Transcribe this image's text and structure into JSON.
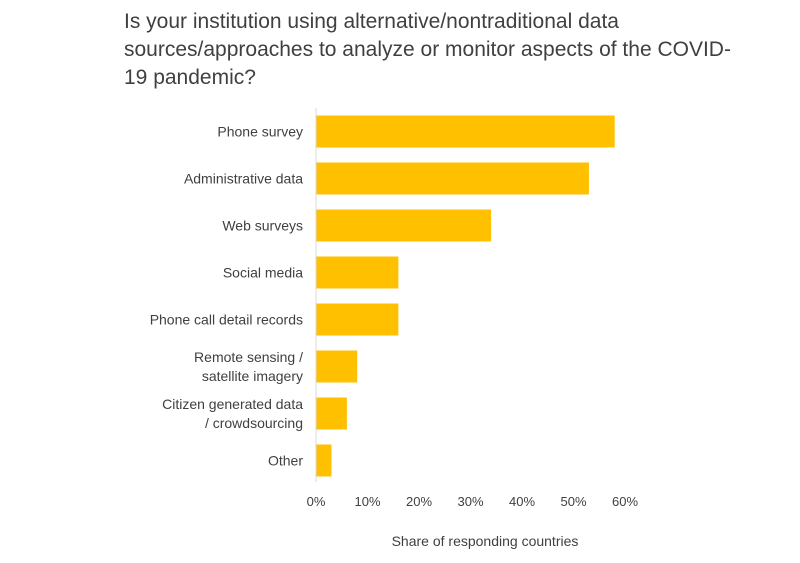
{
  "chart_data": {
    "type": "bar",
    "orientation": "horizontal",
    "title": "Is your institution using alternative/nontraditional data sources/approaches to analyze or monitor aspects of the COVID-19 pandemic?",
    "categories": [
      [
        "Phone survey"
      ],
      [
        "Administrative data"
      ],
      [
        "Web surveys"
      ],
      [
        "Social media"
      ],
      [
        "Phone call detail records"
      ],
      [
        "Remote sensing /",
        "satellite imagery"
      ],
      [
        "Citizen generated data",
        "/ crowdsourcing"
      ],
      [
        "Other"
      ]
    ],
    "values": [
      0.58,
      0.53,
      0.34,
      0.16,
      0.16,
      0.08,
      0.06,
      0.03
    ],
    "xlim": [
      0,
      0.6
    ],
    "xticks": [
      "0%",
      "10%",
      "20%",
      "30%",
      "40%",
      "50%",
      "60%"
    ],
    "xlabel": "Share of responding countries",
    "ylabel": "",
    "bar_color": "#FFC000",
    "grid": false,
    "legend": "none"
  }
}
